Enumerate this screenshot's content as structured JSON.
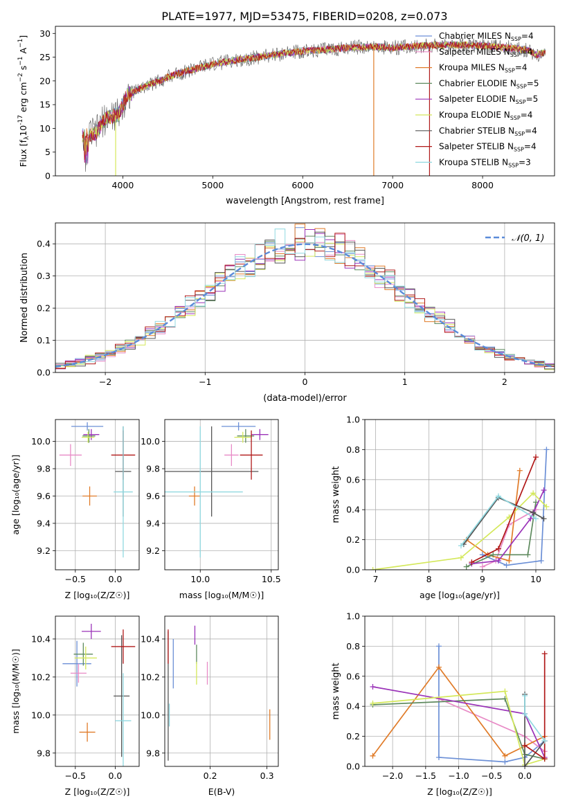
{
  "figure": {
    "title": "PLATE=1977, MJD=53475, FIBERID=0208, z=0.073"
  },
  "models": [
    {
      "name": "Chabrier MILES",
      "nssp": "4",
      "color": "#6b8fd6"
    },
    {
      "name": "Salpeter MILES",
      "nssp": "4",
      "color": "#e88ac6"
    },
    {
      "name": "Kroupa MILES",
      "nssp": "4",
      "color": "#e07b28"
    },
    {
      "name": "Chabrier ELODIE",
      "nssp": "5",
      "color": "#5e8a5e"
    },
    {
      "name": "Salpeter ELODIE",
      "nssp": "5",
      "color": "#9a32b8"
    },
    {
      "name": "Kroupa ELODIE",
      "nssp": "4",
      "color": "#d4e85a"
    },
    {
      "name": "Chabrier STELIB",
      "nssp": "4",
      "color": "#555555"
    },
    {
      "name": "Salpeter STELIB",
      "nssp": "4",
      "color": "#b01818"
    },
    {
      "name": "Kroupa STELIB",
      "nssp": "3",
      "color": "#8fd8e0"
    }
  ],
  "chart_data": [
    {
      "id": "spectrum",
      "type": "line",
      "xlabel": "wavelength [Angstrom, rest frame]",
      "ylabel_prefix": "Flux [f",
      "ylabel_mid": "10",
      "ylabel_exp": "-17",
      "ylabel_suffix": " erg cm",
      "xlim": [
        3250,
        8800
      ],
      "ylim": [
        0,
        31.5
      ],
      "xticks": [
        4000,
        5000,
        6000,
        7000,
        8000
      ],
      "yticks": [
        0,
        5,
        10,
        15,
        20,
        25,
        30
      ],
      "grid": false,
      "legend_position": "top-right",
      "continuum": [
        [
          3550,
          8.5
        ],
        [
          3700,
          9
        ],
        [
          3800,
          12
        ],
        [
          3950,
          13
        ],
        [
          4050,
          17
        ],
        [
          4200,
          18.5
        ],
        [
          4400,
          20
        ],
        [
          4600,
          21.5
        ],
        [
          4800,
          22.5
        ],
        [
          5000,
          23.5
        ],
        [
          5200,
          24.2
        ],
        [
          5500,
          25
        ],
        [
          5800,
          25.8
        ],
        [
          6000,
          26.3
        ],
        [
          6200,
          26.5
        ],
        [
          6500,
          27
        ],
        [
          6800,
          27.2
        ],
        [
          7000,
          27
        ],
        [
          7400,
          27.5
        ],
        [
          7700,
          27.6
        ],
        [
          8000,
          27.4
        ],
        [
          8300,
          27
        ],
        [
          8500,
          26.5
        ],
        [
          8600,
          25.5
        ],
        [
          8700,
          26
        ]
      ],
      "spikes": [
        [
          3920,
          0
        ],
        [
          6790,
          0
        ],
        [
          7410,
          0
        ]
      ]
    },
    {
      "id": "residuals",
      "type": "histogram",
      "xlabel": "(data-model)/error",
      "ylabel": "Normed distribution",
      "xlim": [
        -2.5,
        2.5
      ],
      "ylim": [
        0,
        0.465
      ],
      "xticks": [
        -2,
        -1,
        0,
        1,
        2
      ],
      "yticks": [
        0.0,
        0.1,
        0.2,
        0.3,
        0.4
      ],
      "grid": true,
      "legend_label": "𝒩(0, 1)",
      "legend_position": "top-right",
      "normal_curve": {
        "mean": 0,
        "sigma": 1,
        "color": "#5b8bd9"
      },
      "bin_width": 0.1
    },
    {
      "id": "age-vs-Z",
      "type": "scatter",
      "xlabel": "Z [log10(Z/Z☉)]",
      "ylabel": "age [log10(age/yr)]",
      "xlim": [
        -0.75,
        0.3
      ],
      "ylim": [
        9.06,
        10.16
      ],
      "xticks": [
        -0.5,
        0.0
      ],
      "xtick_labels": [
        "−0.5",
        "0.0"
      ],
      "yticks": [
        9.2,
        9.4,
        9.6,
        9.8,
        10.0
      ],
      "grid": true,
      "points": [
        {
          "model": 0,
          "x": -0.35,
          "xerr": 0.2,
          "y": 10.11,
          "yerr": 0.03
        },
        {
          "model": 1,
          "x": -0.56,
          "xerr": 0.14,
          "y": 9.9,
          "yerr": 0.08
        },
        {
          "model": 2,
          "x": -0.32,
          "xerr": 0.09,
          "y": 9.6,
          "yerr": 0.07
        },
        {
          "model": 3,
          "x": -0.33,
          "xerr": 0.08,
          "y": 10.04,
          "yerr": 0.05
        },
        {
          "model": 4,
          "x": -0.3,
          "xerr": 0.1,
          "y": 10.05,
          "yerr": 0.04
        },
        {
          "model": 5,
          "x": -0.34,
          "xerr": 0.08,
          "y": 10.03,
          "yerr": 0.04
        },
        {
          "model": 6,
          "x": 0.1,
          "xerr": 0.1,
          "y": 9.78,
          "yerr": 0.33
        },
        {
          "model": 7,
          "x": 0.1,
          "xerr": 0.15,
          "y": 9.9,
          "yerr": 0.18
        },
        {
          "model": 8,
          "x": 0.1,
          "xerr": 0.12,
          "y": 9.63,
          "yerr": 0.48
        }
      ]
    },
    {
      "id": "age-vs-mass",
      "type": "scatter",
      "xlabel": "mass [log10(M/M☉)]",
      "xlim": [
        9.75,
        10.55
      ],
      "ylim": [
        9.06,
        10.16
      ],
      "xticks": [
        10.0,
        10.5
      ],
      "xtick_labels": [
        "10.0",
        "10.5"
      ],
      "yticks": [
        9.2,
        9.4,
        9.6,
        9.8,
        10.0
      ],
      "grid": true,
      "points": [
        {
          "model": 0,
          "x": 10.27,
          "xerr": 0.12,
          "y": 10.11,
          "yerr": 0.03
        },
        {
          "model": 1,
          "x": 10.22,
          "xerr": 0.05,
          "y": 9.9,
          "yerr": 0.08
        },
        {
          "model": 2,
          "x": 9.96,
          "xerr": 0.04,
          "y": 9.6,
          "yerr": 0.07
        },
        {
          "model": 3,
          "x": 10.32,
          "xerr": 0.06,
          "y": 10.04,
          "yerr": 0.05
        },
        {
          "model": 4,
          "x": 10.42,
          "xerr": 0.06,
          "y": 10.05,
          "yerr": 0.04
        },
        {
          "model": 5,
          "x": 10.3,
          "xerr": 0.06,
          "y": 10.03,
          "yerr": 0.04
        },
        {
          "model": 6,
          "x": 10.08,
          "xerr": 0.33,
          "y": 9.78,
          "yerr": 0.33
        },
        {
          "model": 7,
          "x": 10.36,
          "xerr": 0.08,
          "y": 9.9,
          "yerr": 0.18
        },
        {
          "model": 8,
          "x": 10.0,
          "xerr": 0.3,
          "y": 9.63,
          "yerr": 0.48
        }
      ]
    },
    {
      "id": "mass-weight-vs-age",
      "type": "line",
      "xlabel": "age [log10(age/yr)]",
      "ylabel": "mass weight",
      "xlim": [
        6.8,
        10.35
      ],
      "ylim": [
        0,
        1.0
      ],
      "xticks": [
        7,
        8,
        9,
        10
      ],
      "yticks": [
        0.0,
        0.2,
        0.4,
        0.6,
        0.8,
        1.0
      ],
      "grid": true,
      "series": [
        {
          "model": 0,
          "points": [
            [
              9.0,
              0.1
            ],
            [
              9.45,
              0.03
            ],
            [
              10.1,
              0.06
            ],
            [
              10.2,
              0.8
            ]
          ]
        },
        {
          "model": 1,
          "points": [
            [
              9.0,
              0.02
            ],
            [
              9.25,
              0.06
            ],
            [
              9.5,
              0.3
            ],
            [
              10.0,
              0.4
            ]
          ]
        },
        {
          "model": 2,
          "points": [
            [
              8.7,
              0.2
            ],
            [
              9.1,
              0.1
            ],
            [
              9.5,
              0.06
            ],
            [
              9.7,
              0.66
            ]
          ]
        },
        {
          "model": 3,
          "points": [
            [
              8.7,
              0.02
            ],
            [
              9.2,
              0.1
            ],
            [
              9.85,
              0.1
            ],
            [
              10.0,
              0.45
            ]
          ]
        },
        {
          "model": 4,
          "points": [
            [
              8.8,
              0.04
            ],
            [
              9.3,
              0.06
            ],
            [
              9.9,
              0.34
            ],
            [
              10.15,
              0.53
            ]
          ]
        },
        {
          "model": 5,
          "points": [
            [
              6.95,
              0.0
            ],
            [
              8.6,
              0.08
            ],
            [
              9.5,
              0.35
            ],
            [
              9.95,
              0.51
            ],
            [
              10.2,
              0.42
            ]
          ]
        },
        {
          "model": 6,
          "points": [
            [
              8.65,
              0.17
            ],
            [
              9.3,
              0.48
            ],
            [
              9.95,
              0.38
            ],
            [
              10.15,
              0.34
            ]
          ]
        },
        {
          "model": 7,
          "points": [
            [
              8.8,
              0.05
            ],
            [
              9.3,
              0.14
            ],
            [
              10.0,
              0.75
            ]
          ]
        },
        {
          "model": 8,
          "points": [
            [
              8.6,
              0.16
            ],
            [
              9.3,
              0.49
            ],
            [
              10.0,
              0.34
            ]
          ]
        }
      ]
    },
    {
      "id": "mass-vs-Z",
      "type": "scatter",
      "xlabel": "Z [log10(Z/Z☉)]",
      "ylabel": "mass [log10(M/M☉)]",
      "xlim": [
        -0.75,
        0.3
      ],
      "ylim": [
        9.73,
        10.52
      ],
      "xticks": [
        -0.5,
        0.0
      ],
      "xtick_labels": [
        "−0.5",
        "0.0"
      ],
      "yticks": [
        9.8,
        10.0,
        10.2,
        10.4
      ],
      "grid": true,
      "points": [
        {
          "model": 0,
          "x": -0.48,
          "xerr": 0.18,
          "y": 10.27,
          "yerr": 0.12
        },
        {
          "model": 1,
          "x": -0.46,
          "xerr": 0.1,
          "y": 10.22,
          "yerr": 0.05
        },
        {
          "model": 2,
          "x": -0.35,
          "xerr": 0.1,
          "y": 9.91,
          "yerr": 0.05
        },
        {
          "model": 3,
          "x": -0.4,
          "xerr": 0.12,
          "y": 10.32,
          "yerr": 0.06
        },
        {
          "model": 4,
          "x": -0.3,
          "xerr": 0.12,
          "y": 10.44,
          "yerr": 0.04
        },
        {
          "model": 5,
          "x": -0.37,
          "xerr": 0.14,
          "y": 10.3,
          "yerr": 0.06
        },
        {
          "model": 6,
          "x": 0.08,
          "xerr": 0.1,
          "y": 10.1,
          "yerr": 0.32
        },
        {
          "model": 7,
          "x": 0.1,
          "xerr": 0.15,
          "y": 10.36,
          "yerr": 0.09
        },
        {
          "model": 8,
          "x": 0.1,
          "xerr": 0.1,
          "y": 9.97,
          "yerr": 0.25
        }
      ]
    },
    {
      "id": "mass-vs-EBV",
      "type": "scatter",
      "xlabel": "E(B-V)",
      "xlim": [
        0.12,
        0.32
      ],
      "ylim": [
        9.73,
        10.52
      ],
      "xticks": [
        0.2,
        0.3
      ],
      "xtick_labels": [
        "0.2",
        "0.3"
      ],
      "yticks": [
        9.8,
        10.0,
        10.2,
        10.4
      ],
      "grid": true,
      "points": [
        {
          "model": 0,
          "x": 0.135,
          "xerr": 0,
          "y": 10.27,
          "yerr": 0.13
        },
        {
          "model": 1,
          "x": 0.195,
          "xerr": 0,
          "y": 10.22,
          "yerr": 0.06
        },
        {
          "model": 2,
          "x": 0.305,
          "xerr": 0,
          "y": 9.95,
          "yerr": 0.08
        },
        {
          "model": 3,
          "x": 0.176,
          "xerr": 0,
          "y": 10.32,
          "yerr": 0.05
        },
        {
          "model": 4,
          "x": 0.173,
          "xerr": 0,
          "y": 10.42,
          "yerr": 0.05
        },
        {
          "model": 5,
          "x": 0.176,
          "xerr": 0,
          "y": 10.22,
          "yerr": 0.06
        },
        {
          "model": 6,
          "x": 0.126,
          "xerr": 0,
          "y": 10.1,
          "yerr": 0.34
        },
        {
          "model": 7,
          "x": 0.126,
          "xerr": 0,
          "y": 10.36,
          "yerr": 0.09
        },
        {
          "model": 8,
          "x": 0.128,
          "xerr": 0,
          "y": 10.0,
          "yerr": 0.06
        }
      ]
    },
    {
      "id": "mass-weight-vs-Z",
      "type": "line",
      "xlabel": "Z [log10(Z/Z☉)]",
      "ylabel": "mass weight",
      "xlim": [
        -2.42,
        0.45
      ],
      "ylim": [
        0,
        1.0
      ],
      "xticks": [
        -2.0,
        -1.5,
        -1.0,
        -0.5,
        0.0
      ],
      "xtick_labels": [
        "−2.0",
        "−1.5",
        "−1.0",
        "−0.5",
        "0.0"
      ],
      "yticks": [
        0.0,
        0.2,
        0.4,
        0.6,
        0.8,
        1.0
      ],
      "grid": true,
      "series": [
        {
          "model": 0,
          "points": [
            [
              -1.3,
              0.8
            ],
            [
              -1.3,
              0.06
            ],
            [
              -0.3,
              0.03
            ],
            [
              0.0,
              0.06
            ],
            [
              0.3,
              0.17
            ]
          ]
        },
        {
          "model": 1,
          "points": [
            [
              -1.3,
              0.45
            ],
            [
              0.0,
              0.2
            ],
            [
              0.3,
              0.1
            ]
          ]
        },
        {
          "model": 2,
          "points": [
            [
              -2.3,
              0.07
            ],
            [
              -1.3,
              0.66
            ],
            [
              -0.3,
              0.07
            ],
            [
              0.3,
              0.2
            ]
          ]
        },
        {
          "model": 3,
          "points": [
            [
              -2.3,
              0.41
            ],
            [
              -0.3,
              0.45
            ],
            [
              0.0,
              0.08
            ],
            [
              0.3,
              0.05
            ]
          ]
        },
        {
          "model": 4,
          "points": [
            [
              -2.3,
              0.53
            ],
            [
              0.0,
              0.35
            ],
            [
              0.3,
              0.06
            ]
          ]
        },
        {
          "model": 5,
          "points": [
            [
              -2.3,
              0.42
            ],
            [
              -0.3,
              0.5
            ],
            [
              0.0,
              0.01
            ],
            [
              0.3,
              0.05
            ]
          ]
        },
        {
          "model": 6,
          "points": [
            [
              0.0,
              0.48
            ],
            [
              0.0,
              0.0
            ],
            [
              0.3,
              0.17
            ]
          ]
        },
        {
          "model": 7,
          "points": [
            [
              0.0,
              0.14
            ],
            [
              0.3,
              0.05
            ],
            [
              0.3,
              0.75
            ]
          ]
        },
        {
          "model": 8,
          "points": [
            [
              0.0,
              0.47
            ],
            [
              0.0,
              0.35
            ],
            [
              0.3,
              0.17
            ]
          ]
        }
      ]
    }
  ]
}
